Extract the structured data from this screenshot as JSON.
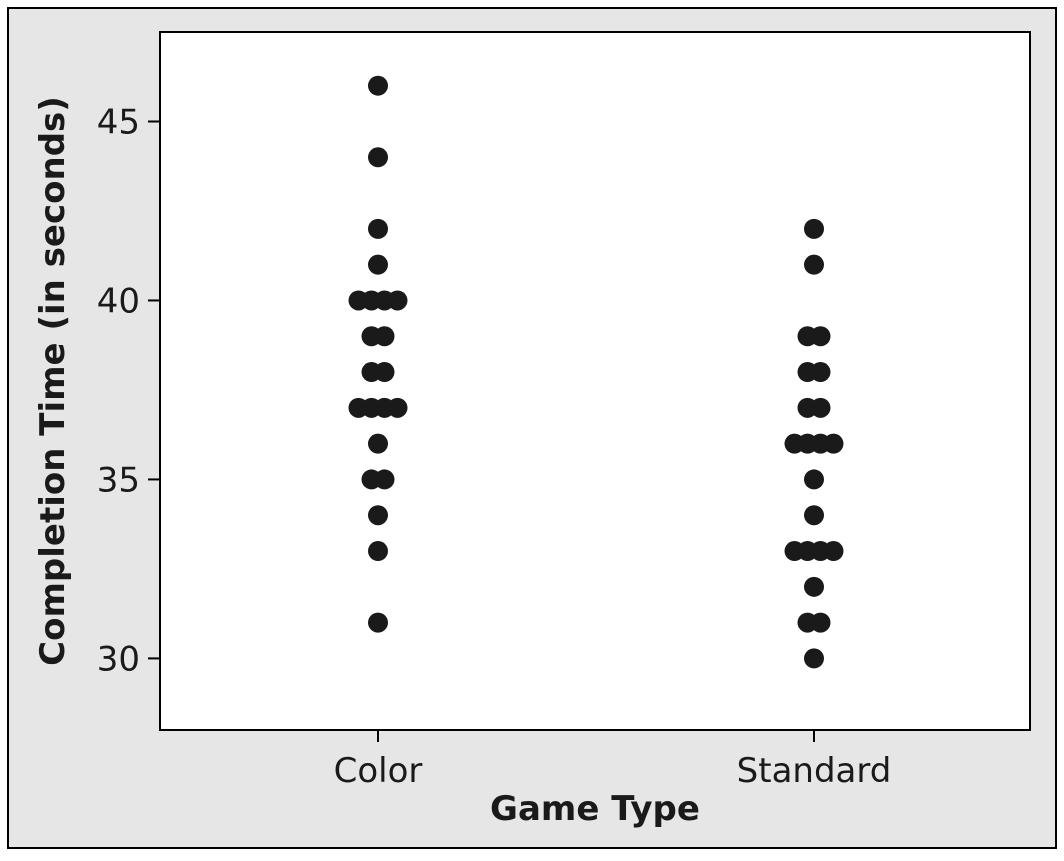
{
  "chart_data": {
    "type": "scatter",
    "subtype": "individual-value-plot",
    "xlabel": "Game Type",
    "ylabel": "Completion Time (in seconds)",
    "categories": [
      "Color",
      "Standard"
    ],
    "ylim": [
      28,
      47.5
    ],
    "yticks": [
      30,
      35,
      40,
      45
    ],
    "grid": false,
    "series": [
      {
        "category": "Color",
        "values": [
          31,
          33,
          34,
          35,
          35,
          36,
          37,
          37,
          37,
          37,
          38,
          38,
          39,
          39,
          40,
          40,
          40,
          40,
          41,
          42,
          44,
          46
        ]
      },
      {
        "category": "Standard",
        "values": [
          30,
          31,
          31,
          32,
          33,
          33,
          33,
          33,
          34,
          35,
          36,
          36,
          36,
          36,
          37,
          37,
          38,
          38,
          39,
          39,
          41,
          42
        ]
      }
    ],
    "colors": {
      "outer_background": "#e6e6e6",
      "plot_background": "#ffffff",
      "dot": "#1a1a1a",
      "axis": "#000000"
    }
  }
}
